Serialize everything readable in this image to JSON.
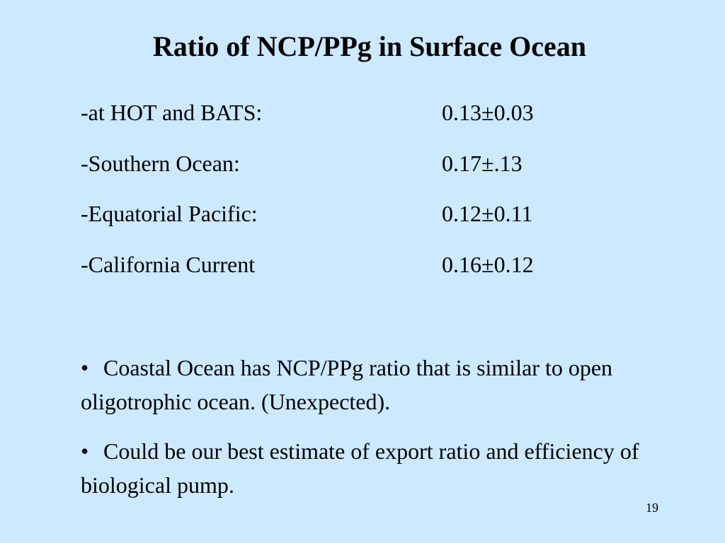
{
  "slide": {
    "title": "Ratio of NCP/PPg in Surface Ocean",
    "ratios": [
      {
        "region": "-at HOT and BATS:",
        "value": "0.13±0.03"
      },
      {
        "region": "-Southern Ocean:",
        "value": "0.17±.13"
      },
      {
        "region": "-Equatorial Pacific:",
        "value": "0.12±0.11"
      },
      {
        "region": "-California Current",
        "value": "0.16±0.12"
      }
    ],
    "bullets": [
      {
        "marker": "•",
        "text": "Coastal Ocean has NCP/PPg ratio that is similar to open oligotrophic ocean. (Unexpected)."
      },
      {
        "marker": "•",
        "text": "Could be our best estimate of export ratio and efficiency of biological pump."
      }
    ],
    "page_number": "19"
  },
  "colors": {
    "background": "#cce9ff",
    "text": "#000000"
  }
}
